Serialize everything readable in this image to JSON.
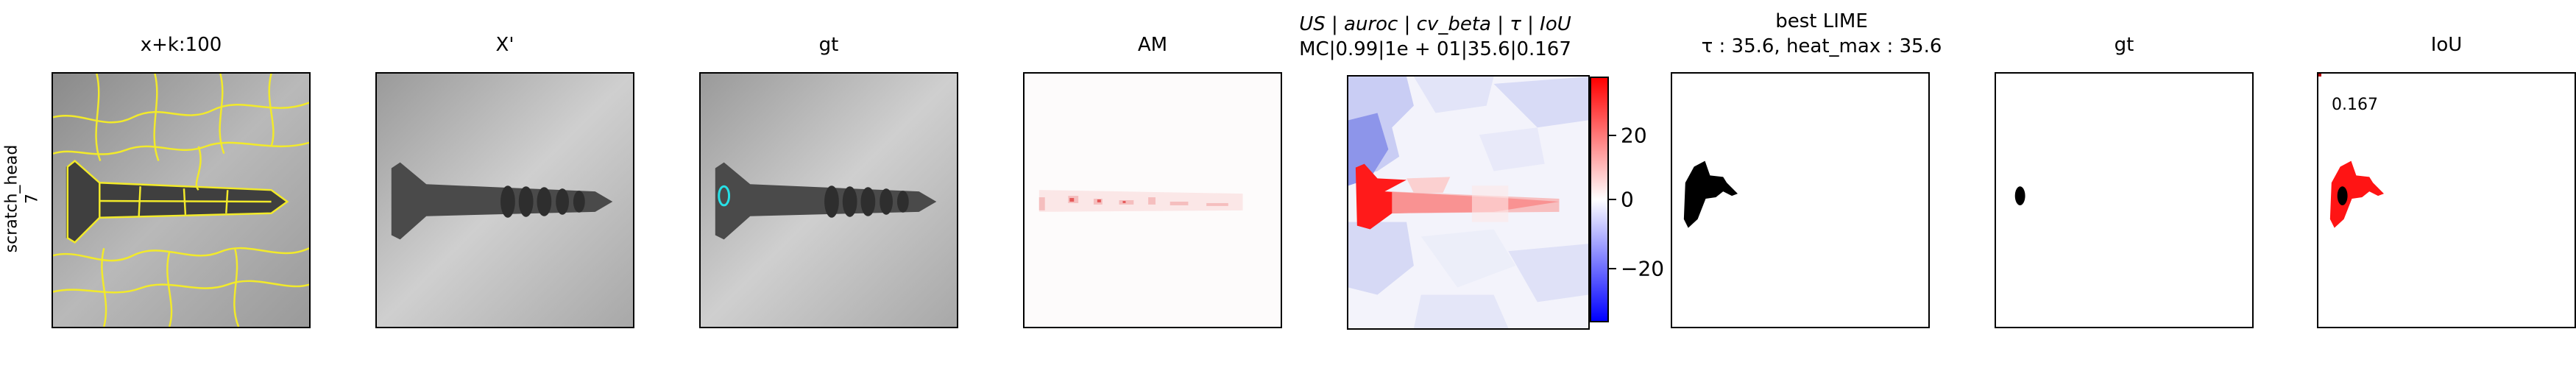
{
  "row_label": [
    "scratch_head",
    "7"
  ],
  "panels": [
    {
      "title": "x+k:100"
    },
    {
      "title": "X'"
    },
    {
      "title": "gt"
    },
    {
      "title": "AM"
    },
    {
      "title_lines": [
        "US | auroc | cv_beta | τ | IoU",
        "MC|0.99|1e + 01|35.6|0.167"
      ]
    },
    {
      "title_lines": [
        "best LIME",
        "τ : 35.6, heat_max : 35.6"
      ]
    },
    {
      "title": "gt"
    },
    {
      "title": "IoU"
    }
  ],
  "iou_value": "0.167",
  "colorbar": {
    "ticks": [
      "20",
      "0",
      "−20"
    ],
    "colors": {
      "high": "#ff0000",
      "mid": "#ffffff",
      "low": "#0000ff"
    }
  }
}
